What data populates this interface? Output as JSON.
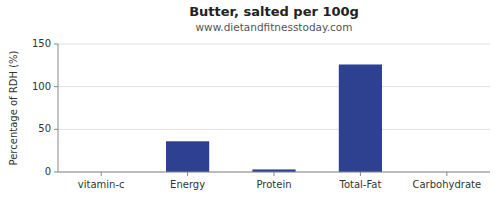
{
  "chart_data": {
    "type": "bar",
    "title": "Butter, salted per 100g",
    "subtitle": "www.dietandfitnesstoday.com",
    "categories": [
      "vitamin-c",
      "Energy",
      "Protein",
      "Total-Fat",
      "Carbohydrate"
    ],
    "values": [
      0,
      36,
      3,
      126,
      0
    ],
    "color": "#2e4090",
    "ylabel": "Percentage of RDH (%)",
    "ylim": [
      0,
      150
    ],
    "yticks": [
      0,
      50,
      100,
      150
    ],
    "grid": true
  }
}
